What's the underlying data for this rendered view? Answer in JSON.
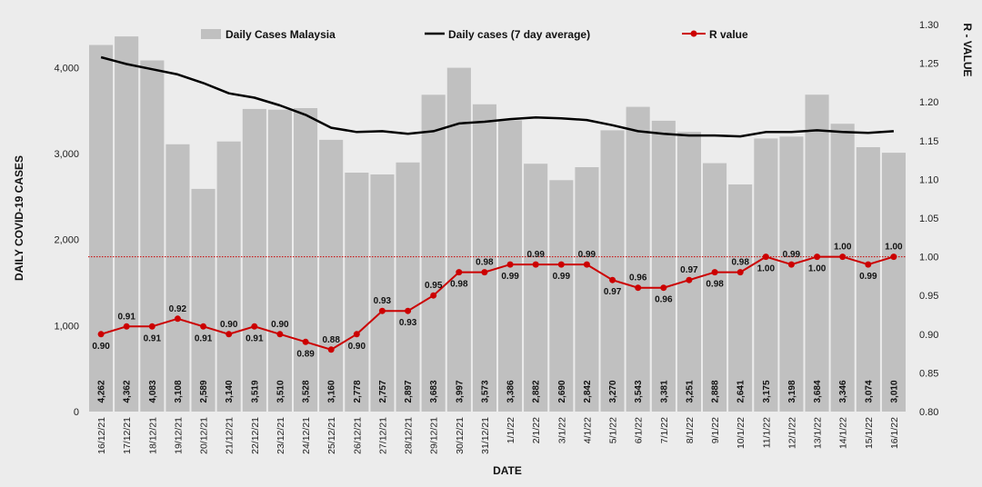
{
  "chart_data": {
    "type": "bar",
    "categories": [
      "16/12/21",
      "17/12/21",
      "18/12/21",
      "19/12/21",
      "20/12/21",
      "21/12/21",
      "22/12/21",
      "23/12/21",
      "24/12/21",
      "25/12/21",
      "26/12/21",
      "27/12/21",
      "28/12/21",
      "29/12/21",
      "30/12/21",
      "31/12/21",
      "1/1/22",
      "2/1/22",
      "3/1/22",
      "4/1/22",
      "5/1/22",
      "6/1/22",
      "7/1/22",
      "8/1/22",
      "9/1/22",
      "10/1/22",
      "11/1/22",
      "12/1/22",
      "13/1/22",
      "14/1/22",
      "15/1/22",
      "16/1/22"
    ],
    "bar_labels": [
      "4,262",
      "4,362",
      "4,083",
      "3,108",
      "2,589",
      "3,140",
      "3,519",
      "3,510",
      "3,528",
      "3,160",
      "2,778",
      "2,757",
      "2,897",
      "3,683",
      "3,997",
      "3,573",
      "3,386",
      "2,882",
      "2,690",
      "2,842",
      "3,270",
      "3,543",
      "3,381",
      "3,251",
      "2,888",
      "2,641",
      "3,175",
      "3,198",
      "3,684",
      "3,346",
      "3,074",
      "3,010"
    ],
    "r_labels": [
      "0.90",
      "0.91",
      "0.91",
      "0.92",
      "0.91",
      "0.90",
      "0.91",
      "0.90",
      "0.89",
      "0.88",
      "0.90",
      "0.93",
      "0.93",
      "0.95",
      "0.98",
      "0.98",
      "0.99",
      "0.99",
      "0.99",
      "0.99",
      "0.97",
      "0.96",
      "0.96",
      "0.97",
      "0.98",
      "0.98",
      "1.00",
      "0.99",
      "1.00",
      "1.00",
      "0.99",
      "1.00"
    ],
    "series": [
      {
        "name": "Daily Cases Malaysia",
        "type": "bar",
        "axis": "left",
        "color": "#c0c0c0",
        "values": [
          4262,
          4362,
          4083,
          3108,
          2589,
          3140,
          3519,
          3510,
          3528,
          3160,
          2778,
          2757,
          2897,
          3683,
          3997,
          3573,
          3386,
          2882,
          2690,
          2842,
          3270,
          3543,
          3381,
          3251,
          2888,
          2641,
          3175,
          3198,
          3684,
          3346,
          3074,
          3010
        ]
      },
      {
        "name": "Daily cases (7 day average)",
        "type": "line",
        "axis": "left",
        "color": "#000000",
        "values": [
          4120,
          4040,
          3980,
          3920,
          3820,
          3700,
          3650,
          3560,
          3450,
          3300,
          3250,
          3260,
          3230,
          3260,
          3350,
          3370,
          3400,
          3420,
          3410,
          3390,
          3330,
          3260,
          3230,
          3210,
          3210,
          3200,
          3250,
          3250,
          3270,
          3250,
          3240,
          3260
        ]
      },
      {
        "name": "R value",
        "type": "line",
        "axis": "right",
        "color": "#cc0000",
        "values": [
          0.9,
          0.91,
          0.91,
          0.92,
          0.91,
          0.9,
          0.91,
          0.9,
          0.89,
          0.88,
          0.9,
          0.93,
          0.93,
          0.95,
          0.98,
          0.98,
          0.99,
          0.99,
          0.99,
          0.99,
          0.97,
          0.96,
          0.96,
          0.97,
          0.98,
          0.98,
          1.0,
          0.99,
          1.0,
          1.0,
          0.99,
          1.0
        ]
      }
    ],
    "reference_line": {
      "axis": "right",
      "value": 1.0,
      "style": "dotted",
      "color": "#cc0000"
    },
    "xlabel": "DATE",
    "ylabel": "DAILY COVID-19 CASES",
    "y2label": "R - VALUE",
    "ylim": [
      0,
      4500
    ],
    "y2lim": [
      0.8,
      1.3
    ],
    "yticks": [
      "0",
      "1,000",
      "2,000",
      "3,000",
      "4,000"
    ],
    "y2ticks": [
      "0.80",
      "0.85",
      "0.90",
      "0.95",
      "1.00",
      "1.05",
      "1.10",
      "1.15",
      "1.20",
      "1.25",
      "1.30"
    ],
    "grid": false,
    "legend_position": "top"
  }
}
